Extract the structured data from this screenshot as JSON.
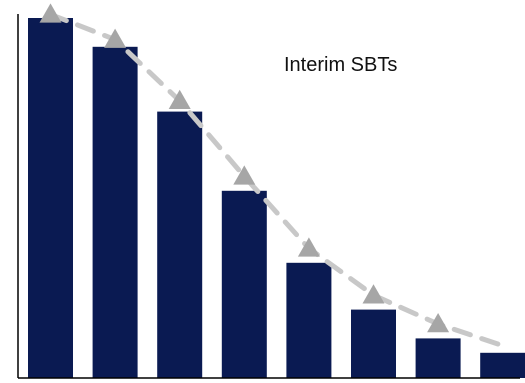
{
  "chart_data": {
    "type": "bar",
    "annotation": "Interim SBTs",
    "categories": [
      "",
      "",
      "",
      "",
      "",
      "",
      "",
      ""
    ],
    "series": [
      {
        "type": "bar",
        "values": [
          100,
          92,
          74,
          52,
          32,
          19,
          11,
          7
        ]
      },
      {
        "type": "line",
        "style": "dashed",
        "marker": "triangle",
        "values": [
          101,
          94,
          77,
          56,
          36,
          23,
          15,
          9
        ]
      }
    ],
    "ylim": [
      0,
      100
    ],
    "grid": false,
    "legend": "none",
    "axes": {
      "y_axis_line": true,
      "x_axis_line": true,
      "tick_labels": false
    },
    "colors": {
      "bar": "#0a1a52",
      "line": "#c8c8c8",
      "marker": "#a6a6a6",
      "background": "#ffffff"
    }
  }
}
